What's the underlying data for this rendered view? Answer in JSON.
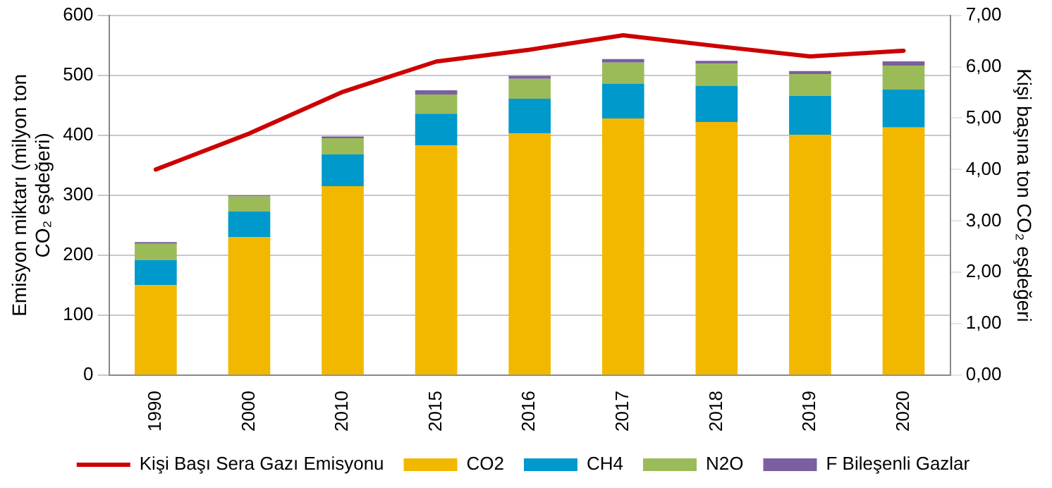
{
  "chart_data": {
    "type": "bar",
    "stacked": true,
    "ylabel": "Emisyon miktarı (milyon ton CO₂ eşdeğeri)",
    "y2label": "Kişi başına ton CO₂ eşdeğeri",
    "categories": [
      "1990",
      "2000",
      "2010",
      "2015",
      "2016",
      "2017",
      "2018",
      "2019",
      "2020"
    ],
    "series": [
      {
        "name": "CO2",
        "color": "#f2b800",
        "values": [
          150,
          230,
          315,
          383,
          403,
          428,
          422,
          401,
          413
        ]
      },
      {
        "name": "CH4",
        "color": "#0099cc",
        "values": [
          42,
          43,
          53,
          53,
          58,
          58,
          60,
          65,
          63
        ]
      },
      {
        "name": "N2O",
        "color": "#9bbb59",
        "values": [
          27,
          25,
          27,
          32,
          33,
          35,
          37,
          36,
          40
        ]
      },
      {
        "name": "F Bileşenli Gazlar",
        "color": "#7b5fa0",
        "values": [
          3,
          2,
          3,
          7,
          5,
          6,
          5,
          5,
          7
        ]
      },
      {
        "name": "Kişi Başı Sera Gazı Emisyonu",
        "type": "line",
        "axis": "y2",
        "color": "#cc0000",
        "values": [
          4.0,
          4.7,
          5.51,
          6.1,
          6.33,
          6.61,
          6.4,
          6.2,
          6.31
        ]
      }
    ],
    "ylim": [
      0,
      600
    ],
    "yticks": [
      0,
      100,
      200,
      300,
      400,
      500,
      600
    ],
    "y2lim": [
      0,
      7
    ],
    "y2ticks": [
      {
        "value": 0,
        "label": "0,00"
      },
      {
        "value": 1,
        "label": "1,00"
      },
      {
        "value": 2,
        "label": "2,00"
      },
      {
        "value": 3,
        "label": "3,00"
      },
      {
        "value": 4,
        "label": "4,00"
      },
      {
        "value": 5,
        "label": "5,00"
      },
      {
        "value": 6,
        "label": "6,00"
      },
      {
        "value": 7,
        "label": "7,00"
      }
    ],
    "grid": "y",
    "legend": "bottom",
    "marker": "none",
    "line_style": "solid"
  }
}
